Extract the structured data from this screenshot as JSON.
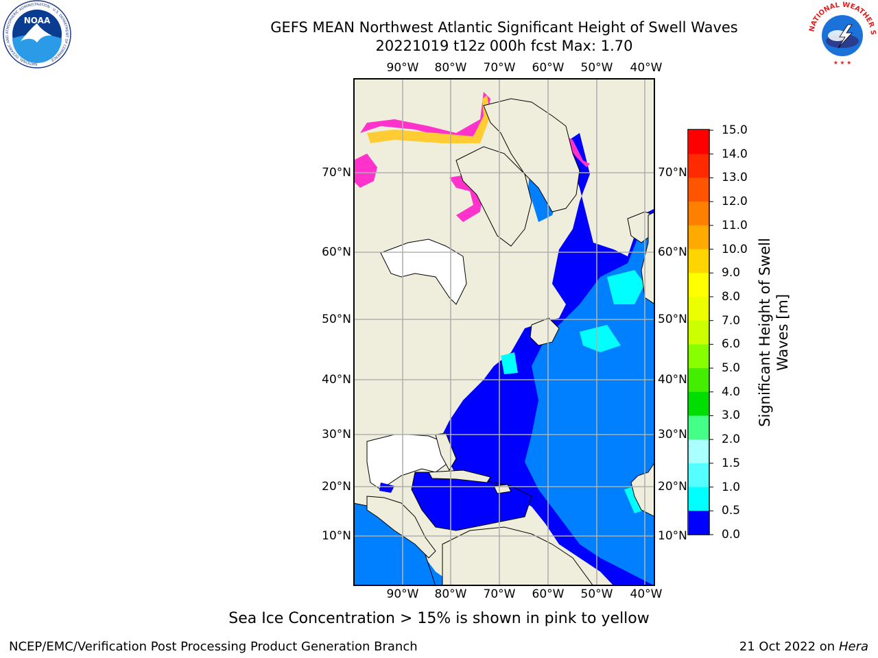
{
  "title": {
    "line1": "GEFS MEAN Northwest Atlantic Significant Height of Swell Waves",
    "line2": "20221019 t12z 000h fcst   Max: 1.70"
  },
  "map": {
    "lon_ticks": [
      "90°W",
      "80°W",
      "70°W",
      "60°W",
      "50°W",
      "40°W"
    ],
    "lat_ticks": [
      "70°N",
      "60°N",
      "50°N",
      "40°N",
      "30°N",
      "20°N",
      "10°N"
    ],
    "colors": {
      "land": "#efeedd",
      "ocean_low": "#0000ff",
      "ocean_mid": "#0080ff",
      "ocean_high": "#00ffff",
      "grid": "#b0b0b0",
      "ice_pink": "#ff33cc",
      "ice_yellow": "#ffcc33"
    }
  },
  "colorbar": {
    "label": "Significant Height of Swell Waves [m]",
    "label_line1": "Significant Height of Swell",
    "label_line2": "Waves [m]",
    "ticks": [
      "15.0",
      "14.0",
      "13.0",
      "12.0",
      "11.0",
      "10.0",
      "9.0",
      "8.0",
      "7.0",
      "6.0",
      "5.0",
      "4.0",
      "3.0",
      "2.0",
      "1.5",
      "1.0",
      "0.5",
      "0.0"
    ],
    "colors": [
      "#ff0000",
      "#ff2a00",
      "#ff5500",
      "#ff8000",
      "#ffaa00",
      "#ffd500",
      "#ffff00",
      "#ebff00",
      "#ccff00",
      "#88ff00",
      "#44ee00",
      "#00dd00",
      "#44ff88",
      "#aaffff",
      "#55ffff",
      "#00ffff",
      "#0080ff",
      "#0000ff"
    ]
  },
  "ice_note": "Sea Ice Concentration > 15% is shown in pink to yellow",
  "footer": {
    "left": "NCEP/EMC/Verification Post Processing Product Generation Branch",
    "right_date": "21 Oct 2022 on",
    "right_host": "Hera"
  },
  "logos": {
    "noaa_text": "NOAA",
    "noaa_ring": "NATIONAL OCEANIC AND ATMOSPHERIC ADMINISTRATION · U.S. DEPARTMENT OF COMMERCE",
    "nws_ring": "NATIONAL WEATHER SERVICE"
  }
}
